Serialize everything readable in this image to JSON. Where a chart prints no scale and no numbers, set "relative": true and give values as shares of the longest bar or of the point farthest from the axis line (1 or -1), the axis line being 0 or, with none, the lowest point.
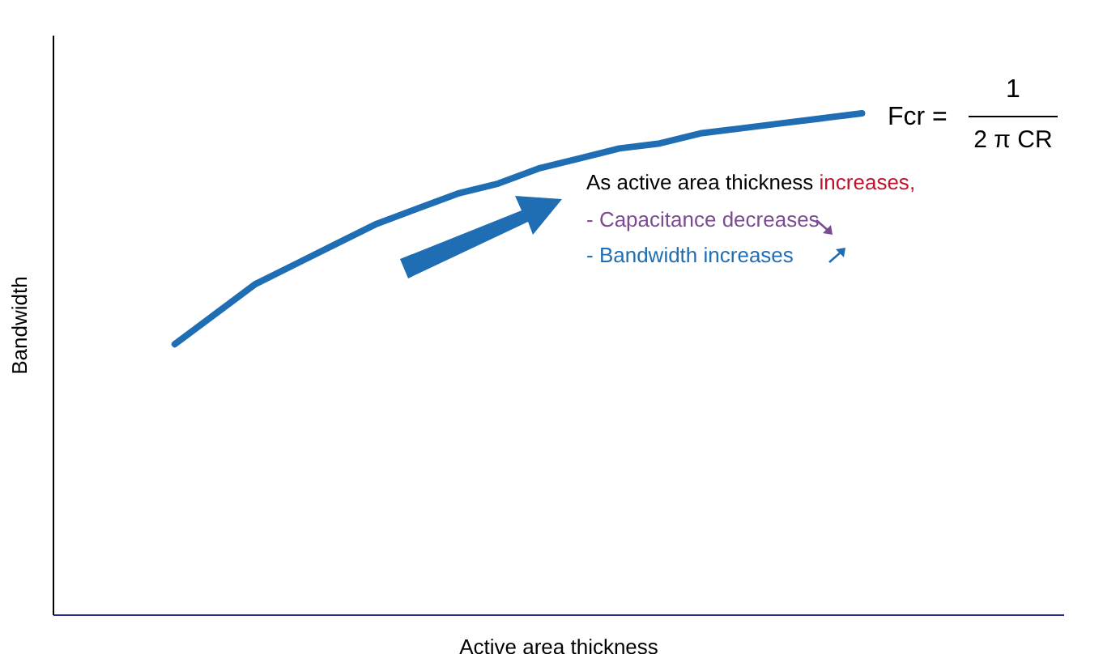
{
  "chart_data": {
    "type": "line",
    "relative": true,
    "xlabel": "Active area thickness",
    "ylabel": "Bandwidth",
    "categories": [
      null,
      null,
      null,
      null,
      null,
      null,
      null,
      null,
      null,
      null,
      null,
      null,
      null,
      null,
      null,
      null,
      null,
      null,
      null,
      null,
      null,
      null,
      null,
      null,
      null,
      null
    ],
    "series": [
      {
        "color": "#1f6db3",
        "values": [
          null,
          null,
          null,
          0.54,
          0.6,
          0.66,
          0.7,
          0.74,
          0.78,
          0.81,
          0.84,
          0.86,
          0.89,
          0.91,
          0.93,
          0.94,
          0.96,
          0.97,
          0.98,
          0.99,
          1,
          null,
          null,
          null,
          null,
          null
        ]
      }
    ],
    "grid": false,
    "marker": "none",
    "line_style": "solid",
    "annotations": [
      "Fcr =",
      "1",
      "2 π CR",
      "As active area thickness ",
      "increases",
      ",",
      "- Capacitance decreases",
      "- Bandwidth increases"
    ]
  }
}
